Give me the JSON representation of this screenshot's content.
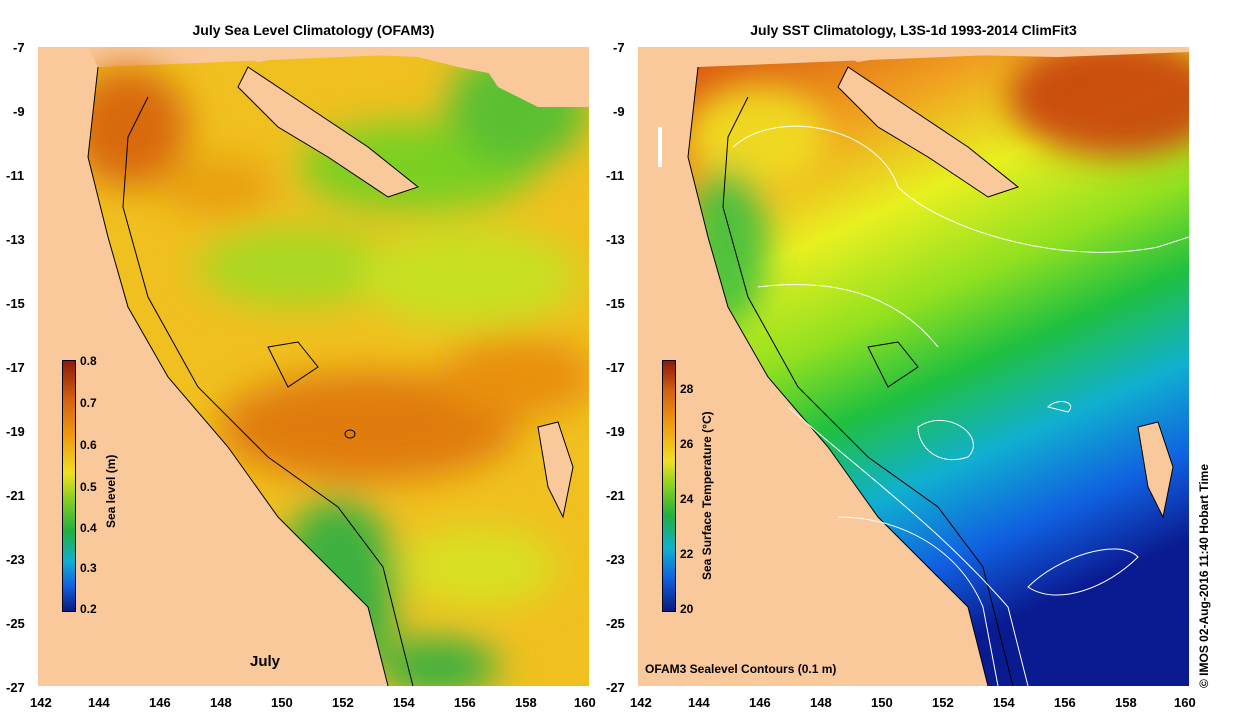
{
  "left_map": {
    "title": "July Sea Level Climatology (OFAM3)",
    "month_label": "July",
    "x_ticks": [
      "142",
      "144",
      "146",
      "148",
      "150",
      "152",
      "154",
      "156",
      "158",
      "160"
    ],
    "y_ticks": [
      "-7",
      "-9",
      "-11",
      "-13",
      "-15",
      "-17",
      "-19",
      "-21",
      "-23",
      "-25",
      "-27"
    ],
    "colorbar": {
      "title": "Sea level (m)",
      "ticks": [
        "0.8",
        "0.7",
        "0.6",
        "0.5",
        "0.4",
        "0.3",
        "0.2"
      ],
      "min": 0.2,
      "max": 0.8
    }
  },
  "right_map": {
    "title": "July SST Climatology, L3S-1d 1993-2014 ClimFit3",
    "annotation": "OFAM3 Sealevel Contours (0.1 m)",
    "x_ticks": [
      "142",
      "144",
      "146",
      "148",
      "150",
      "152",
      "154",
      "156",
      "158",
      "160"
    ],
    "y_ticks": [
      "-7",
      "-9",
      "-11",
      "-13",
      "-15",
      "-17",
      "-19",
      "-21",
      "-23",
      "-25",
      "-27"
    ],
    "colorbar": {
      "title": "Sea Surface Temperature (°C)",
      "ticks": [
        "28",
        "26",
        "24",
        "22",
        "20"
      ],
      "min": 20,
      "max": 29
    }
  },
  "credit": "© IMOS 02-Aug-2016 11:40 Hobart Time",
  "colors": {
    "land": "#f9c99c",
    "coast_line": "#000000",
    "contour_line": "#ffffff"
  }
}
